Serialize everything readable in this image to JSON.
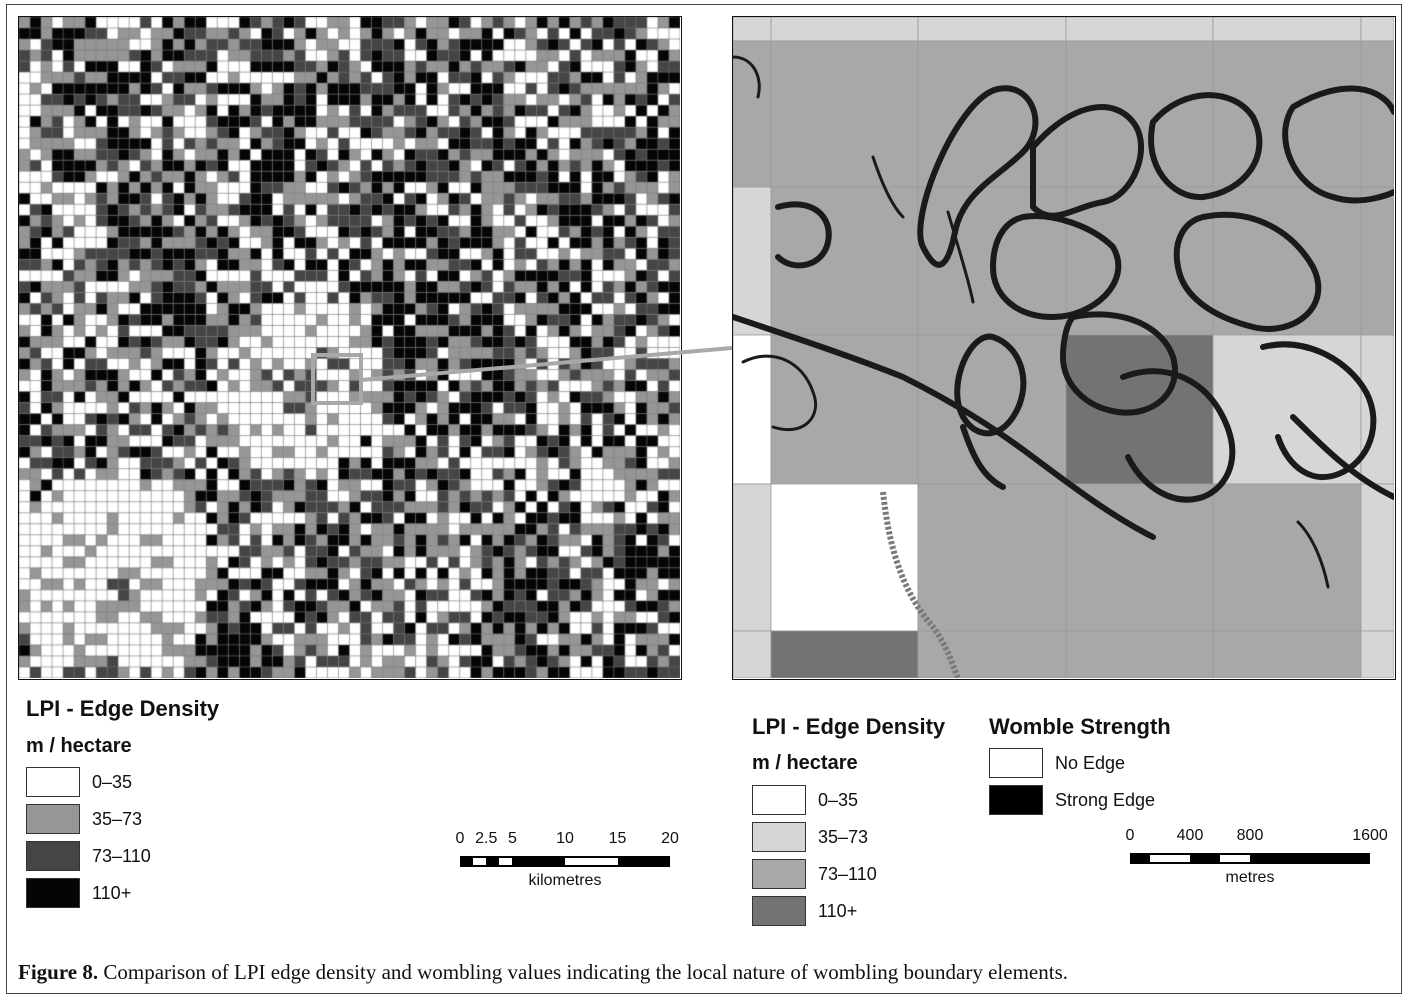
{
  "left_legend": {
    "title": "LPI - Edge Density",
    "unit": "m / hectare",
    "classes": [
      {
        "label": "0–35",
        "color": "#ffffff"
      },
      {
        "label": "35–73",
        "color": "#969696"
      },
      {
        "label": "73–110",
        "color": "#454545"
      },
      {
        "label": "110+",
        "color": "#050505"
      }
    ]
  },
  "left_scale": {
    "ticks": [
      "0",
      "2.5",
      "5",
      "10",
      "15",
      "20"
    ],
    "tick_values": [
      0,
      2.5,
      5,
      10,
      15,
      20
    ],
    "unit": "kilometres"
  },
  "right_legend": {
    "title": "LPI - Edge Density",
    "unit": "m / hectare",
    "classes": [
      {
        "label": "0–35",
        "color": "#ffffff"
      },
      {
        "label": "35–73",
        "color": "#d6d6d6"
      },
      {
        "label": "73–110",
        "color": "#a8a8a8"
      },
      {
        "label": "110+",
        "color": "#737373"
      }
    ]
  },
  "womble_legend": {
    "title": "Womble Strength",
    "classes": [
      {
        "label": "No Edge",
        "color": "#ffffff"
      },
      {
        "label": "Strong Edge",
        "color": "#000000"
      }
    ]
  },
  "right_scale": {
    "ticks": [
      "0",
      "400",
      "800",
      "1600"
    ],
    "tick_values": [
      0,
      400,
      800,
      1600
    ],
    "unit": "metres"
  },
  "caption": {
    "label": "Figure 8.",
    "text": " Comparison of LPI edge density and wombling values indicating the local nature of wombling boundary elements."
  },
  "colors": {
    "inset_box": "#a8a8a8",
    "womble_line": "#1a1a1a",
    "cell_border": "#6f6f6f"
  }
}
